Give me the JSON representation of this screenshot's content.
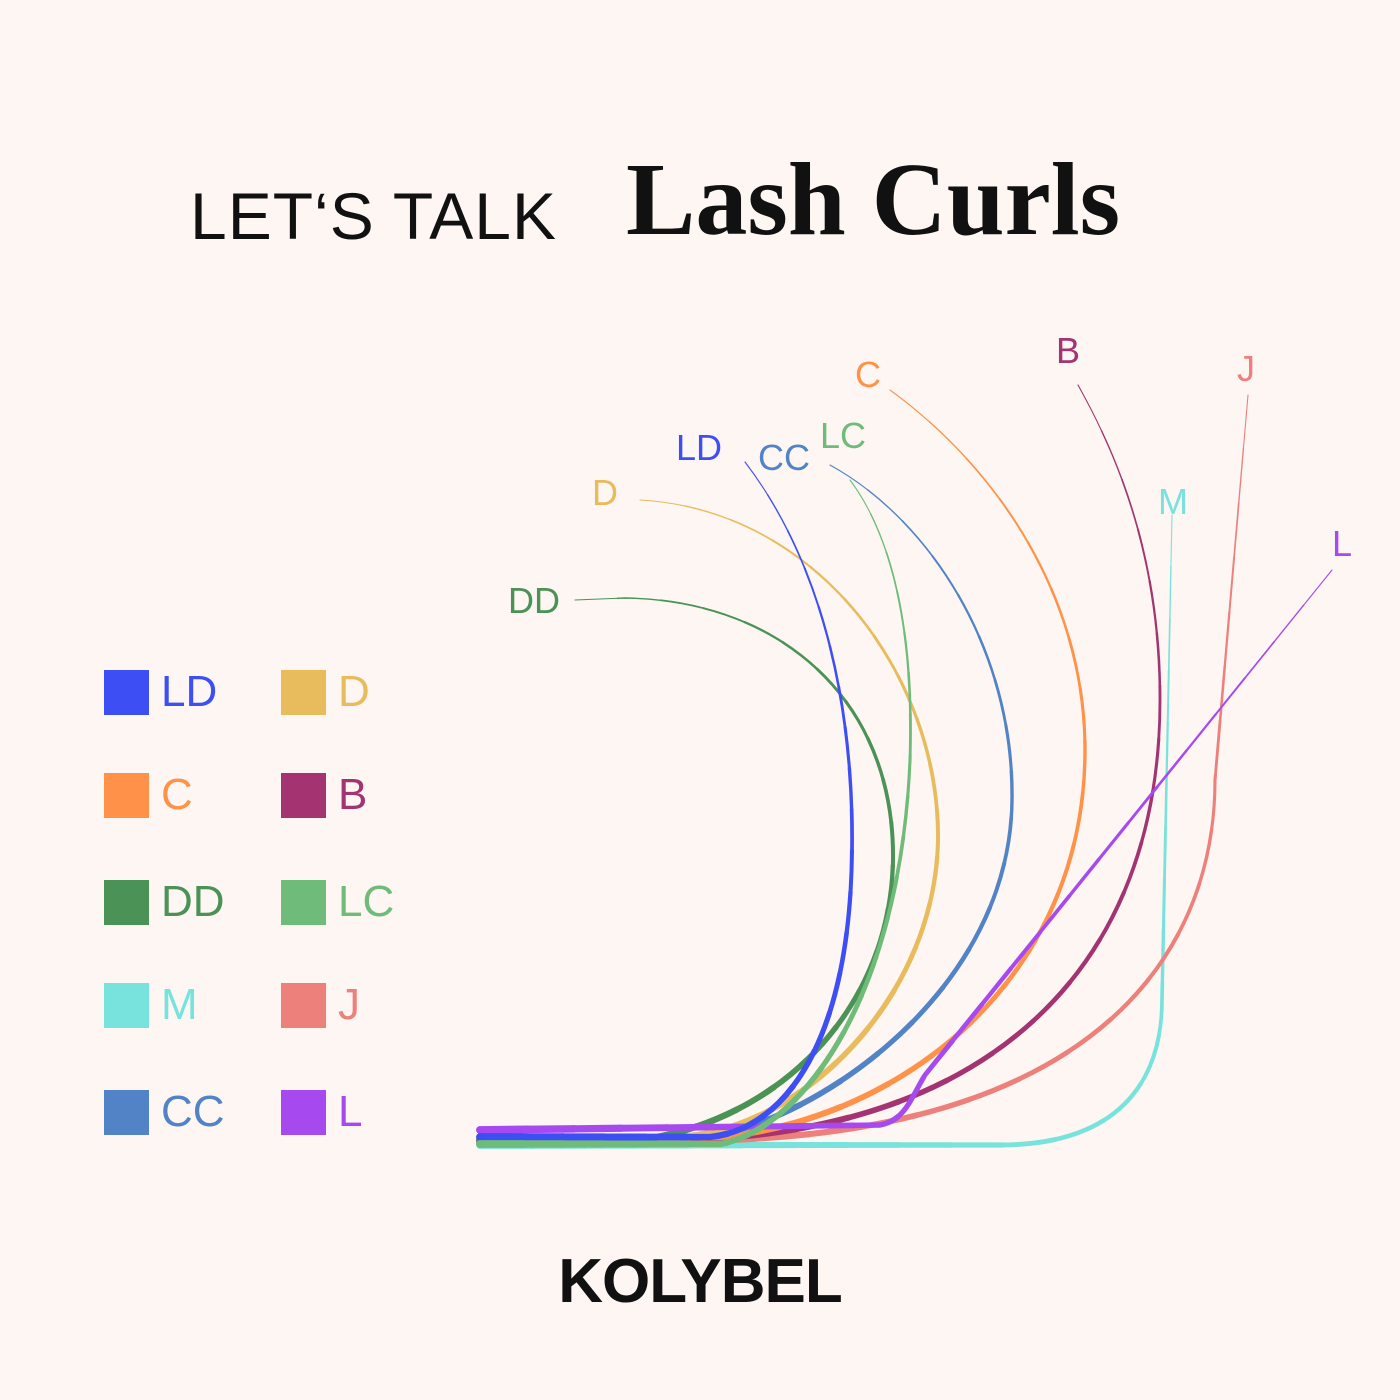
{
  "header": {
    "pre_title": "LET‘S TALK",
    "title": "Lash Curls"
  },
  "brand": "KOLYBEL",
  "curls": [
    {
      "id": "LD",
      "label": "LD",
      "color": "#3d4ef5"
    },
    {
      "id": "D",
      "label": "D",
      "color": "#e8bb5c"
    },
    {
      "id": "C",
      "label": "C",
      "color": "#ff9248"
    },
    {
      "id": "B",
      "label": "B",
      "color": "#a33471"
    },
    {
      "id": "DD",
      "label": "DD",
      "color": "#4a9256"
    },
    {
      "id": "LC",
      "label": "LC",
      "color": "#6fbb7a"
    },
    {
      "id": "M",
      "label": "M",
      "color": "#78e3dc"
    },
    {
      "id": "J",
      "label": "J",
      "color": "#ee807c"
    },
    {
      "id": "CC",
      "label": "CC",
      "color": "#5183c6"
    },
    {
      "id": "L",
      "label": "L",
      "color": "#a64af0"
    }
  ]
}
